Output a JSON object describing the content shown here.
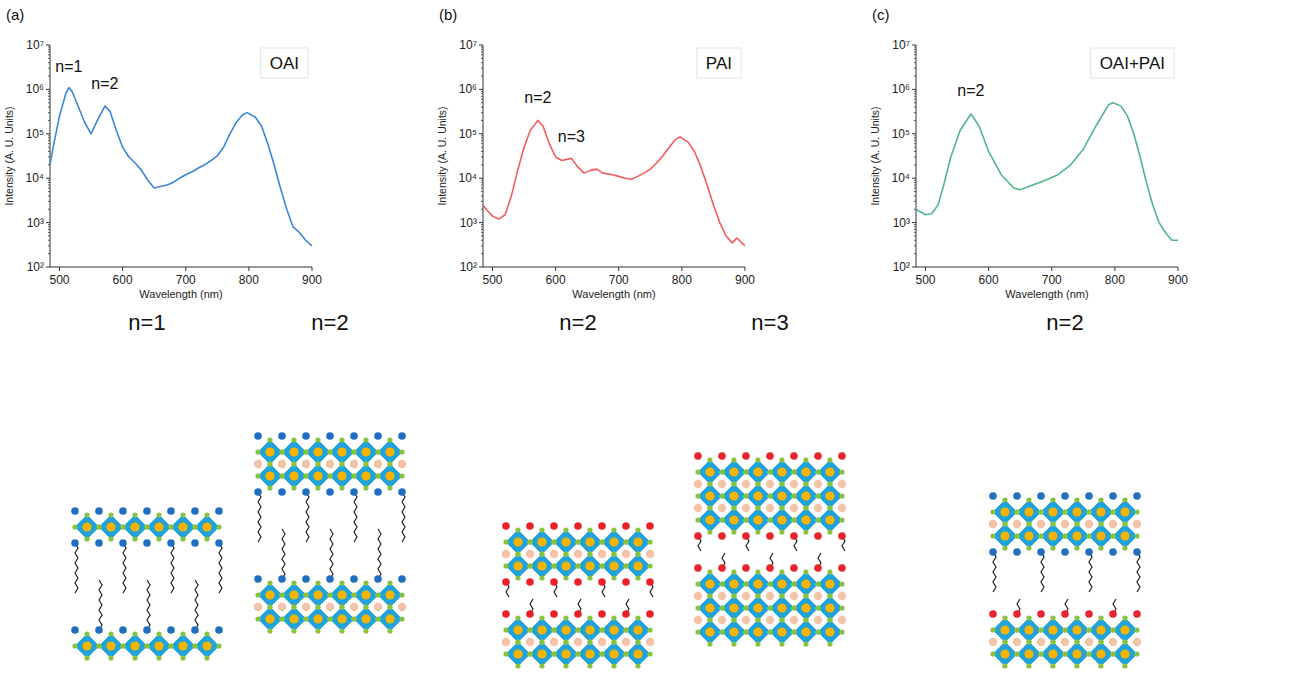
{
  "chart_data": [
    {
      "type": "line",
      "panel": "(a)",
      "x_label": "Wavelength (nm)",
      "y_label": "Intensity (A. U. Units)",
      "log": "y",
      "grid": false,
      "legend": "upper right",
      "xlim": [
        485,
        900
      ],
      "xticks": [
        500,
        600,
        700,
        800,
        900
      ],
      "ylim": [
        100,
        10000000
      ],
      "yticks": [
        {
          "value": 100,
          "label": "10²"
        },
        {
          "value": 1000,
          "label": "10³"
        },
        {
          "value": 10000,
          "label": "10⁴"
        },
        {
          "value": 100000,
          "label": "10⁵"
        },
        {
          "value": 1000000,
          "label": "10⁶"
        },
        {
          "value": 10000000,
          "label": "10⁷"
        }
      ],
      "x": [
        485,
        490,
        500,
        510,
        515,
        520,
        530,
        540,
        550,
        560,
        572,
        580,
        590,
        600,
        610,
        620,
        630,
        640,
        650,
        660,
        670,
        680,
        690,
        700,
        710,
        720,
        730,
        740,
        750,
        760,
        770,
        780,
        790,
        797,
        810,
        820,
        830,
        840,
        850,
        860,
        870,
        880,
        890,
        900
      ],
      "series": [
        {
          "name": "OAI",
          "color": "#3d85d8",
          "values": [
            20000,
            50000,
            250000,
            800000,
            1100000,
            900000,
            400000,
            180000,
            100000,
            200000,
            420000,
            320000,
            120000,
            50000,
            30000,
            22000,
            15000,
            9000,
            6000,
            6500,
            7000,
            8000,
            10000,
            12000,
            14000,
            17000,
            20000,
            25000,
            32000,
            50000,
            100000,
            180000,
            270000,
            300000,
            240000,
            150000,
            60000,
            20000,
            6000,
            2000,
            800,
            600,
            400,
            300
          ]
        }
      ],
      "annotations": [
        {
          "text": "n=1",
          "x": 515,
          "y": 2500000
        },
        {
          "text": "n=2",
          "x": 572,
          "y": 1000000
        }
      ]
    },
    {
      "type": "line",
      "panel": "(b)",
      "x_label": "Wavelength (nm)",
      "y_label": "Intensity (A. U. Units)",
      "log": "y",
      "grid": false,
      "legend": "upper right",
      "xlim": [
        485,
        900
      ],
      "xticks": [
        500,
        600,
        700,
        800,
        900
      ],
      "ylim": [
        100,
        10000000
      ],
      "yticks": [
        {
          "value": 100,
          "label": "10²"
        },
        {
          "value": 1000,
          "label": "10³"
        },
        {
          "value": 10000,
          "label": "10⁴"
        },
        {
          "value": 100000,
          "label": "10⁵"
        },
        {
          "value": 1000000,
          "label": "10⁶"
        },
        {
          "value": 10000000,
          "label": "10⁷"
        }
      ],
      "x": [
        485,
        490,
        500,
        510,
        520,
        530,
        540,
        550,
        560,
        572,
        580,
        590,
        600,
        610,
        625,
        635,
        645,
        655,
        665,
        675,
        690,
        700,
        710,
        720,
        730,
        740,
        750,
        760,
        770,
        780,
        790,
        797,
        810,
        820,
        830,
        840,
        850,
        860,
        870,
        880,
        887,
        895,
        900
      ],
      "series": [
        {
          "name": "PAI",
          "color": "#f25c5c",
          "values": [
            2500,
            2000,
            1400,
            1200,
            1500,
            4000,
            15000,
            50000,
            120000,
            200000,
            150000,
            60000,
            30000,
            25000,
            28000,
            18000,
            13000,
            15000,
            16000,
            13000,
            12000,
            11000,
            10000,
            9500,
            11000,
            13000,
            16000,
            22000,
            32000,
            50000,
            75000,
            85000,
            65000,
            40000,
            18000,
            7000,
            2500,
            1000,
            500,
            350,
            450,
            350,
            300
          ]
        }
      ],
      "annotations": [
        {
          "text": "n=2",
          "x": 572,
          "y": 500000
        },
        {
          "text": "n=3",
          "x": 625,
          "y": 65000
        }
      ]
    },
    {
      "type": "line",
      "panel": "(c)",
      "x_label": "Wavelength (nm)",
      "y_label": "Intensity (A. U. Units)",
      "log": "y",
      "grid": false,
      "legend": "upper right",
      "xlim": [
        485,
        900
      ],
      "xticks": [
        500,
        600,
        700,
        800,
        900
      ],
      "ylim": [
        100,
        10000000
      ],
      "yticks": [
        {
          "value": 100,
          "label": "10²"
        },
        {
          "value": 1000,
          "label": "10³"
        },
        {
          "value": 10000,
          "label": "10⁴"
        },
        {
          "value": 100000,
          "label": "10⁵"
        },
        {
          "value": 1000000,
          "label": "10⁶"
        },
        {
          "value": 10000000,
          "label": "10⁷"
        }
      ],
      "x": [
        485,
        500,
        510,
        520,
        530,
        540,
        555,
        572,
        585,
        600,
        620,
        640,
        650,
        670,
        690,
        710,
        730,
        750,
        770,
        790,
        797,
        810,
        820,
        830,
        840,
        850,
        860,
        870,
        880,
        890,
        900
      ],
      "series": [
        {
          "name": "OAI+PAI",
          "color": "#52b788",
          "values": [
            2000,
            1500,
            1600,
            2500,
            8000,
            30000,
            120000,
            280000,
            150000,
            40000,
            12000,
            6000,
            5500,
            7000,
            9000,
            12000,
            20000,
            45000,
            150000,
            450000,
            500000,
            420000,
            250000,
            100000,
            30000,
            8000,
            2500,
            1000,
            600,
            400,
            400
          ]
        }
      ],
      "annotations": [
        {
          "text": "n=2",
          "x": 572,
          "y": 700000
        }
      ]
    }
  ],
  "schematics": [
    "n=1",
    "n=2",
    "n=2",
    "n=3",
    "n=2"
  ]
}
